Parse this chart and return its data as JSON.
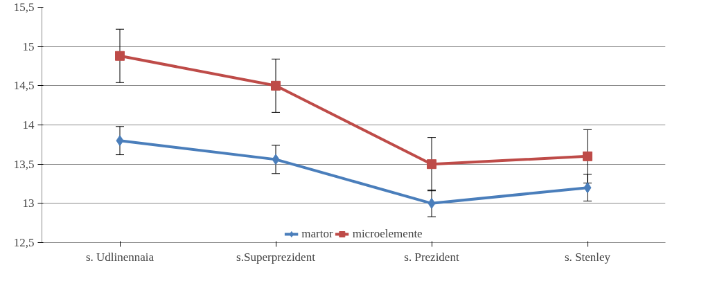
{
  "chart_data": {
    "type": "line",
    "categories": [
      "s. Udlinennaia",
      "s.Superprezident",
      "s. Prezident",
      "s. Stenley"
    ],
    "series": [
      {
        "name": "martor",
        "color": "#4a7ebb",
        "marker": "diamond",
        "values": [
          13.8,
          13.56,
          13.0,
          13.2
        ],
        "errors": [
          0.18,
          0.18,
          0.17,
          0.17
        ]
      },
      {
        "name": "microelemente",
        "color": "#be4b48",
        "marker": "square",
        "values": [
          14.88,
          14.5,
          13.5,
          13.6
        ],
        "errors": [
          0.34,
          0.34,
          0.34,
          0.34
        ]
      }
    ],
    "ylim": [
      12.5,
      15.5
    ],
    "yticks": [
      {
        "value": 12.5,
        "label": "12,5"
      },
      13,
      {
        "value": 13.5,
        "label": "13,5"
      },
      14,
      {
        "value": 14.5,
        "label": "14,5"
      },
      15,
      {
        "value": 15.5,
        "label": "15,5"
      }
    ],
    "grid": "y",
    "legend": "bottom",
    "line_style": "solid"
  }
}
